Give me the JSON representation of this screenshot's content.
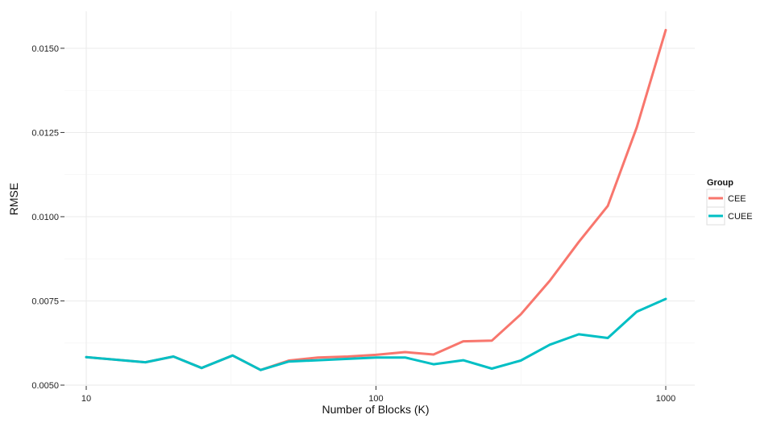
{
  "chart_data": {
    "type": "line",
    "title": "",
    "xlabel": "Number of Blocks (K)",
    "ylabel": "RMSE",
    "x_scale": "log",
    "xlim": [
      10,
      1000
    ],
    "ylim": [
      0.005,
      0.0155
    ],
    "x_ticks": [
      {
        "value": 10,
        "label": "10"
      },
      {
        "value": 100,
        "label": "100"
      },
      {
        "value": 1000,
        "label": "1000"
      }
    ],
    "y_ticks": [
      {
        "value": 0.005,
        "label": "0.0050"
      },
      {
        "value": 0.0075,
        "label": "0.0075"
      },
      {
        "value": 0.01,
        "label": "0.0100"
      },
      {
        "value": 0.0125,
        "label": "0.0125"
      },
      {
        "value": 0.015,
        "label": "0.0150"
      }
    ],
    "x": [
      10,
      16,
      20,
      25,
      32,
      40,
      50,
      63,
      80,
      100,
      126,
      158,
      200,
      251,
      316,
      398,
      501,
      631,
      794,
      1000
    ],
    "series": [
      {
        "name": "CEE",
        "color": "#F8766D",
        "values": [
          0.00583,
          0.00568,
          0.00585,
          0.00551,
          0.00588,
          0.00545,
          0.00573,
          0.00582,
          0.00585,
          0.0059,
          0.00598,
          0.00591,
          0.0063,
          0.00632,
          0.0071,
          0.0081,
          0.00925,
          0.01032,
          0.01265,
          0.01554
        ]
      },
      {
        "name": "CUEE",
        "color": "#00BFC4",
        "values": [
          0.00583,
          0.00568,
          0.00585,
          0.00551,
          0.00588,
          0.00545,
          0.0057,
          0.00574,
          0.00578,
          0.00582,
          0.00582,
          0.00562,
          0.00574,
          0.00549,
          0.00573,
          0.0062,
          0.00651,
          0.0064,
          0.00718,
          0.00756
        ]
      }
    ],
    "grid": true,
    "legend": {
      "title": "Group",
      "position": "right"
    }
  }
}
